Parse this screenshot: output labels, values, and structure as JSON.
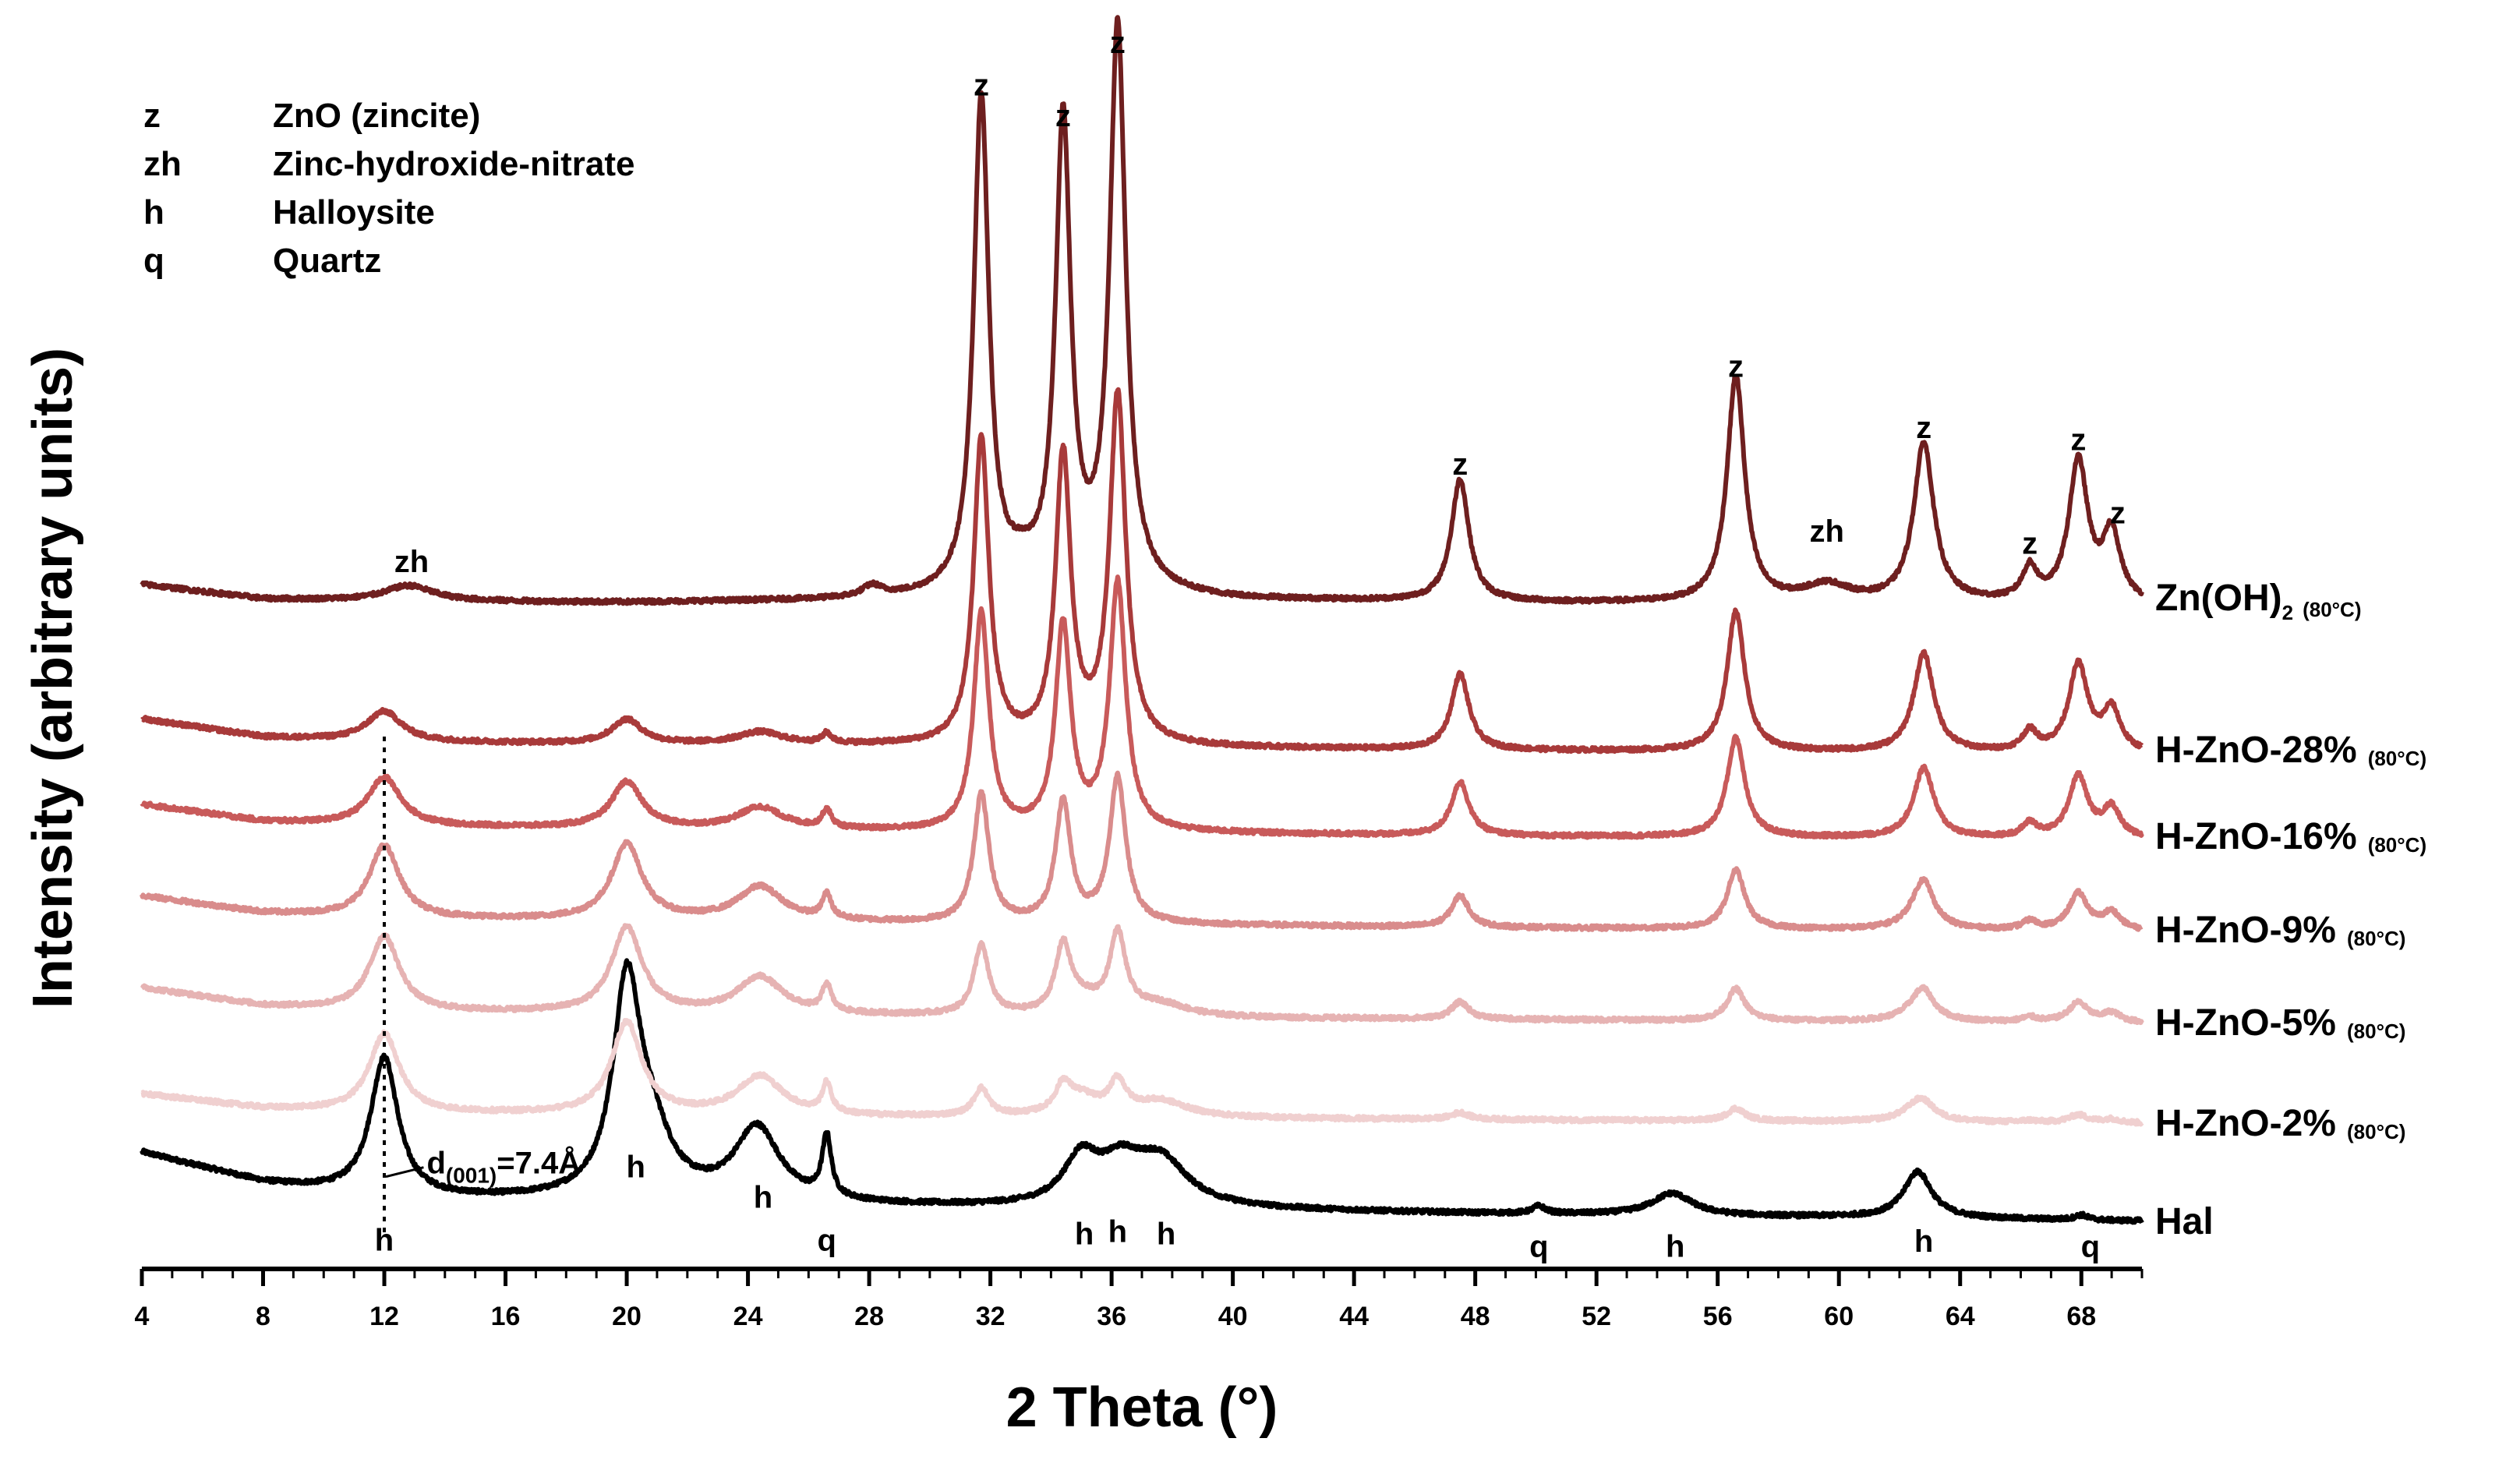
{
  "chart_data": {
    "type": "line",
    "title": "",
    "xlabel": "2 Theta (°)",
    "ylabel": "Intensity (arbitrary units)",
    "xlim": [
      4,
      70
    ],
    "ylim": [
      0,
      100
    ],
    "grid": false,
    "xticks": [
      4,
      8,
      12,
      16,
      20,
      24,
      28,
      32,
      36,
      40,
      44,
      48,
      52,
      56,
      60,
      64,
      68
    ],
    "legend_key": [
      {
        "symbol": "z",
        "name": "ZnO (zincite)"
      },
      {
        "symbol": "zh",
        "name": "Zinc-hydroxide-nitrate"
      },
      {
        "symbol": "h",
        "name": "Halloysite"
      },
      {
        "symbol": "q",
        "name": "Quartz"
      }
    ],
    "series": [
      {
        "name": "Hal",
        "sub": "",
        "color": "#000000",
        "offset": 3.5,
        "baseline": [
          [
            4,
            6
          ],
          [
            8,
            3.5
          ],
          [
            12,
            2.2
          ],
          [
            20,
            2.0
          ],
          [
            28,
            1.6
          ],
          [
            34,
            1.4
          ],
          [
            40,
            1.3
          ],
          [
            48,
            1.0
          ],
          [
            56,
            0.8
          ],
          [
            64,
            0.6
          ],
          [
            70,
            0.4
          ]
        ],
        "peaks": [
          [
            12.0,
            11.5,
            0.55
          ],
          [
            20.0,
            17.0,
            0.55
          ],
          [
            20.8,
            4.5,
            0.8
          ],
          [
            24.3,
            6.0,
            0.9
          ],
          [
            26.6,
            5.0,
            0.18
          ],
          [
            35.0,
            3.8,
            0.7
          ],
          [
            36.3,
            2.8,
            0.8
          ],
          [
            37.6,
            3.8,
            1.1
          ],
          [
            50.1,
            0.6,
            0.25
          ],
          [
            54.5,
            1.8,
            0.8
          ],
          [
            62.6,
            3.8,
            0.55
          ],
          [
            68.0,
            0.4,
            0.25
          ]
        ],
        "z_scale": 0
      },
      {
        "name": "H-ZnO-2%",
        "sub": "(80°C)",
        "color": "#f0d0d0",
        "offset": 11.8,
        "baseline": [
          [
            4,
            2.5
          ],
          [
            8,
            1.3
          ],
          [
            12,
            0.9
          ],
          [
            20,
            0.8
          ],
          [
            28,
            0.6
          ],
          [
            34,
            0.6
          ],
          [
            40,
            0.5
          ],
          [
            48,
            0.4
          ],
          [
            56,
            0.3
          ],
          [
            64,
            0.2
          ],
          [
            70,
            0.1
          ]
        ],
        "peaks": [
          [
            12.0,
            6.5,
            0.6
          ],
          [
            20.0,
            7.5,
            0.6
          ],
          [
            24.4,
            3.2,
            0.9
          ],
          [
            26.6,
            2.4,
            0.18
          ],
          [
            35.0,
            1.5,
            0.7
          ],
          [
            37.6,
            1.3,
            1.1
          ],
          [
            62.6,
            1.3,
            0.6
          ]
        ],
        "z_scale": 0.055
      },
      {
        "name": "H-ZnO-5%",
        "sub": "(80°C)",
        "color": "#e6b3b3",
        "offset": 20.0,
        "baseline": [
          [
            4,
            3.0
          ],
          [
            8,
            1.5
          ],
          [
            12,
            1.0
          ],
          [
            20,
            0.9
          ],
          [
            28,
            0.7
          ],
          [
            34,
            0.6
          ],
          [
            40,
            0.5
          ],
          [
            48,
            0.4
          ],
          [
            56,
            0.3
          ],
          [
            64,
            0.2
          ],
          [
            70,
            0.1
          ]
        ],
        "peaks": [
          [
            12.0,
            6.2,
            0.6
          ],
          [
            20.0,
            7.0,
            0.6
          ],
          [
            24.4,
            3.0,
            0.9
          ],
          [
            26.6,
            2.2,
            0.18
          ],
          [
            35.0,
            1.2,
            0.7
          ],
          [
            37.6,
            1.0,
            1.1
          ],
          [
            62.6,
            1.0,
            0.6
          ]
        ],
        "z_scale": 0.14
      },
      {
        "name": "H-ZnO-9%",
        "sub": "(80°C)",
        "color": "#d98c8c",
        "offset": 27.5,
        "baseline": [
          [
            4,
            3.0
          ],
          [
            8,
            1.6
          ],
          [
            12,
            1.1
          ],
          [
            20,
            1.0
          ],
          [
            28,
            0.8
          ],
          [
            34,
            0.7
          ],
          [
            40,
            0.6
          ],
          [
            48,
            0.4
          ],
          [
            56,
            0.3
          ],
          [
            64,
            0.2
          ],
          [
            70,
            0.1
          ]
        ],
        "peaks": [
          [
            12.0,
            6.0,
            0.6
          ],
          [
            20.0,
            6.2,
            0.6
          ],
          [
            24.4,
            2.8,
            0.9
          ],
          [
            26.6,
            2.0,
            0.18
          ],
          [
            62.6,
            0.8,
            0.6
          ]
        ],
        "z_scale": 0.26
      },
      {
        "name": "H-ZnO-16%",
        "sub": "(80°C)",
        "color": "#c85a5a",
        "offset": 35.0,
        "baseline": [
          [
            4,
            3.0
          ],
          [
            8,
            1.6
          ],
          [
            12,
            1.2
          ],
          [
            20,
            1.0
          ],
          [
            28,
            0.8
          ],
          [
            34,
            0.7
          ],
          [
            40,
            0.6
          ],
          [
            48,
            0.4
          ],
          [
            56,
            0.3
          ],
          [
            64,
            0.2
          ],
          [
            70,
            0.1
          ]
        ],
        "peaks": [
          [
            12.0,
            4.0,
            0.65
          ],
          [
            20.0,
            3.8,
            0.6
          ],
          [
            24.4,
            1.8,
            0.9
          ],
          [
            26.6,
            1.5,
            0.18
          ]
        ],
        "z_scale": 0.44
      },
      {
        "name": "H-ZnO-28%",
        "sub": "(80°C)",
        "color": "#a83a3a",
        "offset": 42.0,
        "baseline": [
          [
            4,
            3.0
          ],
          [
            8,
            1.5
          ],
          [
            12,
            1.1
          ],
          [
            20,
            0.9
          ],
          [
            28,
            0.8
          ],
          [
            34,
            0.7
          ],
          [
            40,
            0.6
          ],
          [
            48,
            0.4
          ],
          [
            56,
            0.3
          ],
          [
            64,
            0.2
          ],
          [
            70,
            0.1
          ]
        ],
        "peaks": [
          [
            12.0,
            2.5,
            0.7
          ],
          [
            20.0,
            2.0,
            0.6
          ],
          [
            24.4,
            1.0,
            0.9
          ],
          [
            26.6,
            0.8,
            0.18
          ]
        ],
        "z_scale": 0.62
      },
      {
        "name": "Zn(OH)",
        "sub": "(80°C)",
        "sub2": "2",
        "color": "#6e1f1f",
        "offset": 54.0,
        "baseline": [
          [
            4,
            2.0
          ],
          [
            8,
            0.8
          ],
          [
            12,
            0.6
          ],
          [
            20,
            0.5
          ],
          [
            28,
            0.7
          ],
          [
            32,
            1.0
          ],
          [
            34,
            1.3
          ],
          [
            40,
            0.7
          ],
          [
            48,
            0.5
          ],
          [
            56,
            0.4
          ],
          [
            64,
            0.4
          ],
          [
            70,
            0.3
          ]
        ],
        "peaks": [
          [
            12.8,
            1.3,
            1.0
          ],
          [
            28.1,
            0.9,
            0.4
          ],
          [
            33.0,
            1.3,
            0.5
          ],
          [
            59.6,
            1.4,
            0.9
          ]
        ],
        "z_scale": 1.0
      }
    ],
    "zno_peaks": [
      [
        31.7,
        40.5,
        0.3
      ],
      [
        34.4,
        38.0,
        0.3
      ],
      [
        36.2,
        46.0,
        0.32
      ],
      [
        47.5,
        10.0,
        0.35
      ],
      [
        56.6,
        18.5,
        0.35
      ],
      [
        62.8,
        13.0,
        0.4
      ],
      [
        66.3,
        2.6,
        0.3
      ],
      [
        67.9,
        11.5,
        0.38
      ],
      [
        69.0,
        5.5,
        0.35
      ]
    ],
    "peak_labels": [
      {
        "text": "z",
        "x": 31.7,
        "y": 96.0
      },
      {
        "text": "z",
        "x": 34.4,
        "y": 93.5
      },
      {
        "text": "z",
        "x": 36.2,
        "y": 99.5
      },
      {
        "text": "z",
        "x": 47.5,
        "y": 65.0
      },
      {
        "text": "z",
        "x": 56.6,
        "y": 73.0
      },
      {
        "text": "z",
        "x": 62.8,
        "y": 68.0
      },
      {
        "text": "z",
        "x": 66.3,
        "y": 58.5
      },
      {
        "text": "z",
        "x": 67.9,
        "y": 67.0
      },
      {
        "text": "z",
        "x": 69.2,
        "y": 61.0
      },
      {
        "text": "zh",
        "x": 12.9,
        "y": 57.0
      },
      {
        "text": "zh",
        "x": 59.6,
        "y": 59.5
      },
      {
        "text": "h",
        "x": 12.0,
        "y": 1.5
      },
      {
        "text": "h",
        "x": 20.3,
        "y": 7.5
      },
      {
        "text": "h",
        "x": 24.5,
        "y": 5.0
      },
      {
        "text": "q",
        "x": 26.6,
        "y": 1.5
      },
      {
        "text": "h",
        "x": 35.1,
        "y": 2.0
      },
      {
        "text": "h",
        "x": 36.2,
        "y": 2.2
      },
      {
        "text": "h",
        "x": 37.8,
        "y": 2.0
      },
      {
        "text": "q",
        "x": 50.1,
        "y": 1.0
      },
      {
        "text": "h",
        "x": 54.6,
        "y": 1.0
      },
      {
        "text": "h",
        "x": 62.8,
        "y": 1.4
      },
      {
        "text": "q",
        "x": 68.3,
        "y": 1.0
      }
    ],
    "annotations": [
      {
        "text": "d",
        "sub": "(001)",
        "after": "=7.4Å",
        "x": 13.4,
        "y": 7.8
      }
    ],
    "dotted_line": {
      "x": 12.0,
      "y_from": 3.0,
      "y_to": 44.0
    }
  }
}
